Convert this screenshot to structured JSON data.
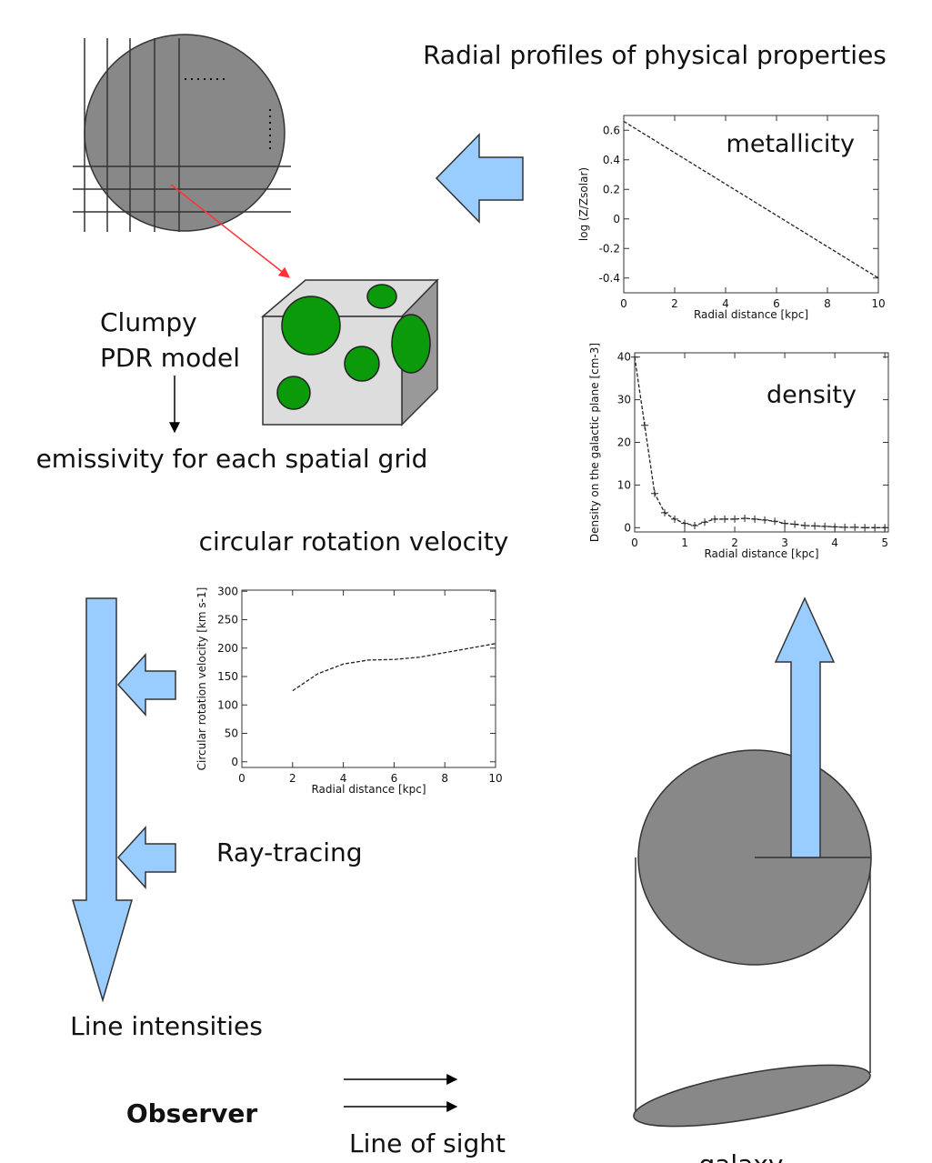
{
  "title": "Radial profiles of physical properties",
  "pdr_label": [
    "Clumpy",
    "PDR model"
  ],
  "emissivity_label": "emissivity for each spatial grid",
  "rotation_label": "circular rotation velocity",
  "ray_tracing_label": "Ray-tracing",
  "line_intensities_label": "Line intensities",
  "observer_label": "Observer",
  "line_of_sight_label": "Line of sight",
  "galaxy_label": "galaxy",
  "charts": [
    {
      "type": "line",
      "label": "metallicity",
      "xlabel": "Radial distance [kpc]",
      "ylabel": "log (Z/Zsolar)",
      "x": [
        0,
        10
      ],
      "values": [
        0.66,
        -0.4
      ],
      "color": "#222",
      "markers": false,
      "xlim": [
        0,
        10
      ],
      "ylim": [
        -0.5,
        0.7
      ],
      "xticks": [
        0,
        2,
        4,
        6,
        8,
        10
      ],
      "yticks": [
        -0.4,
        -0.2,
        0.0,
        0.2,
        0.4,
        0.6
      ]
    },
    {
      "type": "line",
      "label": "density",
      "xlabel": "Radial distance [kpc]",
      "ylabel": "Density on the galactic plane [cm-3]",
      "x": [
        0,
        0.2,
        0.4,
        0.6,
        0.8,
        1.0,
        1.2,
        1.4,
        1.6,
        1.8,
        2.0,
        2.2,
        2.4,
        2.6,
        2.8,
        3.0,
        3.2,
        3.4,
        3.6,
        3.8,
        4.0,
        4.2,
        4.4,
        4.6,
        4.8,
        5.0
      ],
      "values": [
        40,
        24,
        8,
        3.5,
        2,
        1,
        0.5,
        1.3,
        2,
        2,
        2,
        2.2,
        2,
        1.8,
        1.5,
        1,
        0.8,
        0.5,
        0.4,
        0.3,
        0.2,
        0.1,
        0.1,
        0,
        0,
        0
      ],
      "color": "#222",
      "markers": true,
      "xlim": [
        0,
        5.07
      ],
      "ylim": [
        -1,
        41
      ],
      "xticks": [
        0,
        1,
        2,
        3,
        4,
        5
      ],
      "yticks": [
        0,
        10,
        20,
        30,
        40
      ]
    },
    {
      "type": "line",
      "xlabel": "Radial distance [kpc]",
      "ylabel": "Circular rotation velocity [km s-1]",
      "x": [
        2,
        3,
        4,
        5,
        6,
        7,
        8,
        9,
        10
      ],
      "values": [
        125,
        155,
        172,
        179,
        180,
        184,
        192,
        200,
        208
      ],
      "color": "#222",
      "markers": false,
      "xlim": [
        0,
        10
      ],
      "ylim": [
        -10,
        302
      ],
      "xticks": [
        0,
        2,
        4,
        6,
        8,
        10
      ],
      "yticks": [
        0,
        50,
        100,
        150,
        200,
        250,
        300
      ]
    }
  ]
}
